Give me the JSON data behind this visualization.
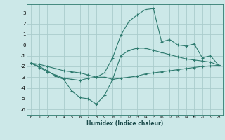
{
  "title": "",
  "xlabel": "Humidex (Indice chaleur)",
  "ylabel": "",
  "background_color": "#cce8e8",
  "grid_color": "#aacccc",
  "line_color": "#2d7a6e",
  "xlim": [
    -0.5,
    23.5
  ],
  "ylim": [
    -6.5,
    3.8
  ],
  "xticks": [
    0,
    1,
    2,
    3,
    4,
    5,
    6,
    7,
    8,
    9,
    10,
    11,
    12,
    13,
    14,
    15,
    16,
    17,
    18,
    19,
    20,
    21,
    22,
    23
  ],
  "yticks": [
    -6,
    -5,
    -4,
    -3,
    -2,
    -1,
    0,
    1,
    2,
    3
  ],
  "line1_x": [
    0,
    1,
    2,
    3,
    4,
    5,
    6,
    7,
    8,
    9,
    10,
    11,
    12,
    13,
    14,
    15,
    16,
    17,
    18,
    19,
    20,
    21,
    22,
    23
  ],
  "line1_y": [
    -1.7,
    -2.1,
    -2.5,
    -2.8,
    -3.1,
    -3.2,
    -3.3,
    -3.1,
    -3.0,
    -3.0,
    -3.2,
    -3.1,
    -3.0,
    -2.9,
    -2.7,
    -2.6,
    -2.5,
    -2.4,
    -2.3,
    -2.2,
    -2.1,
    -2.0,
    -1.95,
    -1.9
  ],
  "line2_x": [
    0,
    1,
    2,
    3,
    4,
    5,
    6,
    7,
    8,
    9,
    10,
    11,
    12,
    13,
    14,
    15,
    16,
    17,
    18,
    19,
    20,
    21,
    22,
    23
  ],
  "line2_y": [
    -1.7,
    -2.0,
    -2.4,
    -2.9,
    -3.2,
    -4.3,
    -4.9,
    -5.0,
    -5.5,
    -4.7,
    -3.2,
    -1.0,
    -0.5,
    -0.3,
    -0.3,
    -0.5,
    -0.7,
    -0.9,
    -1.1,
    -1.3,
    -1.4,
    -1.5,
    -1.6,
    -1.9
  ],
  "line3_x": [
    0,
    1,
    2,
    3,
    4,
    5,
    6,
    7,
    8,
    9,
    10,
    11,
    12,
    13,
    14,
    15,
    16,
    17,
    18,
    19,
    20,
    21,
    22,
    23
  ],
  "line3_y": [
    -1.7,
    -1.8,
    -2.0,
    -2.2,
    -2.4,
    -2.5,
    -2.6,
    -2.8,
    -3.0,
    -2.6,
    -1.2,
    0.9,
    2.2,
    2.8,
    3.3,
    3.4,
    0.3,
    0.5,
    0.0,
    -0.1,
    0.1,
    -1.2,
    -1.0,
    -1.9
  ]
}
